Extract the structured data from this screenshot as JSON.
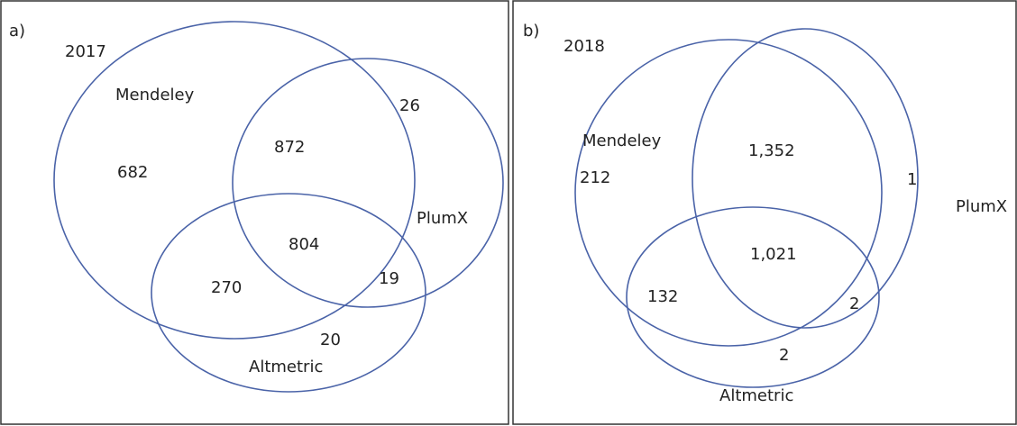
{
  "panels": [
    {
      "label": "a)",
      "year": "2017",
      "sets": [
        "Mendeley",
        "PlumX",
        "Altmetric"
      ],
      "regions": {
        "mendeley_only": "682",
        "mendeley_plumx": "872",
        "plumx_only": "26",
        "all_three": "804",
        "mendeley_altmetric": "270",
        "plumx_altmetric": "19",
        "altmetric_only": "20"
      }
    },
    {
      "label": "b)",
      "year": "2018",
      "sets": [
        "Mendeley",
        "PlumX",
        "Altmetric"
      ],
      "regions": {
        "mendeley_only": "212",
        "mendeley_plumx": "1,352",
        "plumx_only": "1",
        "all_three": "1,021",
        "mendeley_altmetric": "132",
        "plumx_altmetric": "2",
        "altmetric_only": "2"
      }
    }
  ]
}
